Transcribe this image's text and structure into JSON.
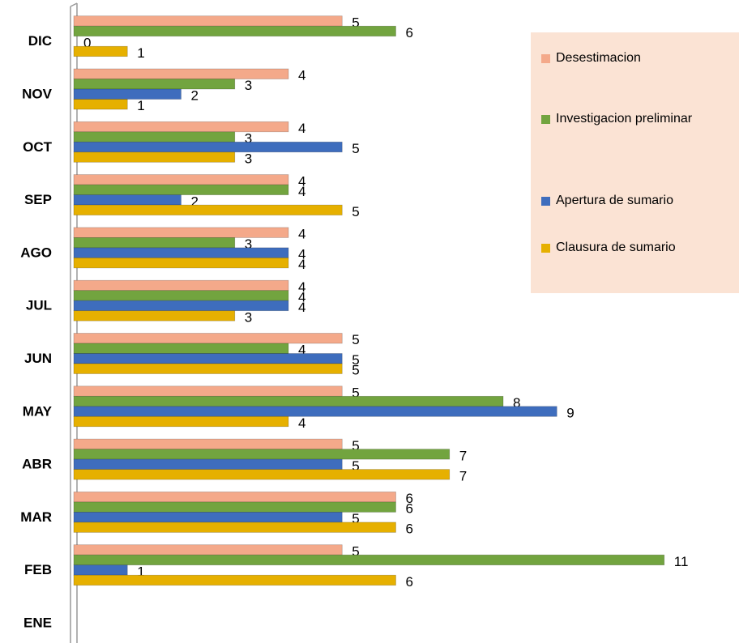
{
  "chart_data": {
    "type": "bar",
    "orientation": "horizontal",
    "categories": [
      "ENE",
      "FEB",
      "MAR",
      "ABR",
      "MAY",
      "JUN",
      "JUL",
      "AGO",
      "SEP",
      "OCT",
      "NOV",
      "DIC"
    ],
    "series": [
      {
        "name": "Desestimacion",
        "color": "#f4a98a",
        "values": [
          null,
          5,
          6,
          5,
          5,
          5,
          4,
          4,
          4,
          4,
          4,
          5
        ]
      },
      {
        "name": "Investigacion preliminar",
        "color": "#72a43f",
        "values": [
          null,
          11,
          6,
          7,
          8,
          4,
          4,
          3,
          4,
          3,
          3,
          6
        ]
      },
      {
        "name": "Apertura de sumario",
        "color": "#3e6dbd",
        "values": [
          null,
          1,
          5,
          5,
          9,
          5,
          4,
          4,
          2,
          5,
          2,
          0
        ]
      },
      {
        "name": "Clausura de sumario",
        "color": "#e6b000",
        "values": [
          null,
          6,
          6,
          7,
          4,
          5,
          3,
          4,
          5,
          3,
          1,
          1
        ]
      }
    ],
    "xlim": [
      0,
      12
    ],
    "legend": "right"
  }
}
